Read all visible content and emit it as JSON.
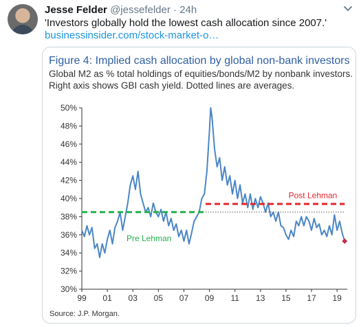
{
  "tweet": {
    "author_name": "Jesse Felder",
    "author_handle": "@jessefelder",
    "separator": "·",
    "time": "24h",
    "text": "'Investors globally hold the lowest cash allocation since 2007.'",
    "link": "businessinsider.com/stock-market-o…"
  },
  "icons": {
    "avatar": "avatar-photo",
    "menu": "chevron-down-icon"
  },
  "colors": {
    "title_blue": "#2f5fa3",
    "line_blue": "#4a86c5",
    "pre_lehman_green": "#22b14c",
    "post_lehman_red": "#e3262b",
    "last_point": "#c0334b",
    "link_blue": "#1b95e0"
  },
  "card": {
    "title": "Figure 4: Implied cash allocation by global non-bank investors",
    "subtitle_line1": "Global M2 as % total holdings of equities/bonds/M2 by nonbank investors.",
    "subtitle_line2": "Right axis shows GBI cash yield. Dotted lines are averages.",
    "source": "Source:  J.P. Morgan."
  },
  "chart_data": {
    "type": "line",
    "title": "Figure 4: Implied cash allocation by global non-bank investors",
    "ylim": [
      30,
      50
    ],
    "xlim": [
      1999,
      2019.8
    ],
    "y_ticks": [
      "30%",
      "32%",
      "34%",
      "36%",
      "38%",
      "40%",
      "42%",
      "44%",
      "46%",
      "48%",
      "50%"
    ],
    "y_tick_values": [
      30,
      32,
      34,
      36,
      38,
      40,
      42,
      44,
      46,
      48,
      50
    ],
    "x_ticks": [
      "99",
      "01",
      "03",
      "05",
      "07",
      "09",
      "11",
      "13",
      "15",
      "17",
      "19"
    ],
    "x_tick_values": [
      1999,
      2001,
      2003,
      2005,
      2007,
      2009,
      2011,
      2013,
      2015,
      2017,
      2019
    ],
    "grid": false,
    "series": [
      {
        "x": [
          1999.0,
          1999.2,
          1999.4,
          1999.6,
          1999.8,
          2000.0,
          2000.2,
          2000.4,
          2000.6,
          2000.8,
          2001.0,
          2001.2,
          2001.4,
          2001.6,
          2001.8,
          2002.0,
          2002.2,
          2002.4,
          2002.6,
          2002.8,
          2003.0,
          2003.2,
          2003.4,
          2003.6,
          2003.8,
          2004.0,
          2004.2,
          2004.4,
          2004.6,
          2004.8,
          2005.0,
          2005.2,
          2005.4,
          2005.6,
          2005.8,
          2006.0,
          2006.2,
          2006.4,
          2006.6,
          2006.8,
          2007.0,
          2007.2,
          2007.4,
          2007.6,
          2007.8,
          2008.0,
          2008.2,
          2008.4,
          2008.6,
          2008.8,
          2009.0,
          2009.1,
          2009.2,
          2009.4,
          2009.6,
          2009.8,
          2010.0,
          2010.2,
          2010.4,
          2010.6,
          2010.8,
          2011.0,
          2011.2,
          2011.4,
          2011.6,
          2011.8,
          2012.0,
          2012.2,
          2012.4,
          2012.6,
          2012.8,
          2013.0,
          2013.2,
          2013.4,
          2013.6,
          2013.8,
          2014.0,
          2014.2,
          2014.4,
          2014.6,
          2014.8,
          2015.0,
          2015.2,
          2015.4,
          2015.6,
          2015.8,
          2016.0,
          2016.2,
          2016.4,
          2016.6,
          2016.8,
          2017.0,
          2017.2,
          2017.4,
          2017.6,
          2017.8,
          2018.0,
          2018.2,
          2018.4,
          2018.6,
          2018.8,
          2019.0,
          2019.2,
          2019.4,
          2019.6
        ],
        "y": [
          36.5,
          35.8,
          37.0,
          36.0,
          36.8,
          34.5,
          35.0,
          33.5,
          35.0,
          34.0,
          35.5,
          36.5,
          35.0,
          36.8,
          37.5,
          38.5,
          36.5,
          38.0,
          39.5,
          41.5,
          42.5,
          41.0,
          43.0,
          40.5,
          39.5,
          38.5,
          39.0,
          38.0,
          39.5,
          38.5,
          38.0,
          38.8,
          37.5,
          38.5,
          37.0,
          37.8,
          36.5,
          37.2,
          35.8,
          36.5,
          35.3,
          36.5,
          35.0,
          36.2,
          37.5,
          38.0,
          38.5,
          40.0,
          40.5,
          43.0,
          47.5,
          50.0,
          49.0,
          45.5,
          43.5,
          44.5,
          42.0,
          43.5,
          41.5,
          42.5,
          40.5,
          42.0,
          40.0,
          41.5,
          39.5,
          40.5,
          39.0,
          40.5,
          38.8,
          40.0,
          39.0,
          40.2,
          39.5,
          38.5,
          39.5,
          38.0,
          38.5,
          37.5,
          38.5,
          37.0,
          36.8,
          36.0,
          35.5,
          36.5,
          35.8,
          37.5,
          37.0,
          38.0,
          37.0,
          38.0,
          37.5,
          36.5,
          37.8,
          36.8,
          37.2,
          36.0,
          36.5,
          35.8,
          37.0,
          36.0,
          38.2,
          36.5,
          37.5,
          36.2,
          35.3
        ]
      }
    ],
    "annotations": [
      {
        "label": "Pre Lehman",
        "average": 38.5,
        "x_start": 1999,
        "x_end": 2008.7,
        "style": "dashed",
        "color": "#22b14c"
      },
      {
        "label": "Post Lehman",
        "average": 39.4,
        "x_start": 2008.7,
        "x_end": 2019.6,
        "style": "dashed",
        "color": "#e3262b"
      },
      {
        "label": "",
        "average": 38.5,
        "x_start": 2008.7,
        "x_end": 2019.6,
        "style": "dotted",
        "color": "#555555"
      }
    ],
    "last_point": {
      "x": 2019.6,
      "y": 35.3
    }
  }
}
